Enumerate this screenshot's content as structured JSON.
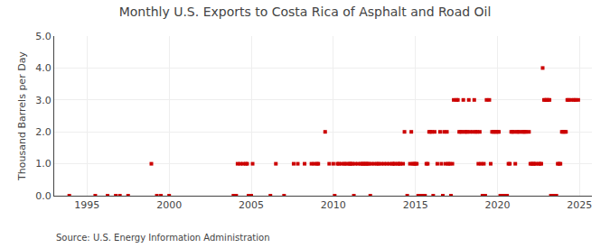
{
  "chart_data": {
    "type": "scatter",
    "title": "Monthly U.S. Exports to Costa Rica of Asphalt and Road Oil",
    "y_label": "Thousand Barrels per Day",
    "annotations": [
      "Source: U.S. Energy Information Administration"
    ],
    "color": "#cc0000",
    "marker": "square",
    "grid": true,
    "xlim": [
      1993.0,
      2025.75
    ],
    "xticks": [
      1995,
      2000,
      2005,
      2010,
      2015,
      2020,
      2025
    ],
    "ylim": [
      0,
      5.0
    ],
    "yticks": [
      {
        "value": 0.0,
        "label": "0.0"
      },
      {
        "value": 1.0,
        "label": "1.0"
      },
      {
        "value": 2.0,
        "label": "2.0"
      },
      {
        "value": 3.0,
        "label": "3.0"
      },
      {
        "value": 4.0,
        "label": "4.0"
      },
      {
        "value": 5.0,
        "label": "5.0"
      }
    ],
    "x": [
      1993.917,
      1995.5,
      1996.25,
      1996.75,
      1997.0,
      1997.5,
      1998.917,
      1999.25,
      1999.5,
      2000.0,
      2003.917,
      2004.083,
      2004.167,
      2004.333,
      2004.5,
      2004.667,
      2004.75,
      2004.833,
      2005.0,
      2005.083,
      2006.167,
      2006.5,
      2007.0,
      2007.583,
      2007.833,
      2008.25,
      2008.667,
      2008.833,
      2009.0,
      2009.083,
      2009.5,
      2009.75,
      2010.0,
      2010.083,
      2010.25,
      2010.333,
      2010.5,
      2010.667,
      2010.75,
      2010.917,
      2011.0,
      2011.083,
      2011.167,
      2011.25,
      2011.333,
      2011.5,
      2011.667,
      2011.75,
      2011.833,
      2011.917,
      2012.0,
      2012.083,
      2012.167,
      2012.25,
      2012.333,
      2012.5,
      2012.667,
      2012.75,
      2012.917,
      2013.083,
      2013.25,
      2013.417,
      2013.583,
      2013.667,
      2013.75,
      2013.917,
      2014.0,
      2014.083,
      2014.25,
      2014.333,
      2014.5,
      2014.667,
      2014.75,
      2014.833,
      2014.917,
      2015.0,
      2015.083,
      2015.167,
      2015.25,
      2015.333,
      2015.5,
      2015.583,
      2015.667,
      2015.75,
      2015.833,
      2015.917,
      2016.0,
      2016.083,
      2016.167,
      2016.333,
      2016.5,
      2016.583,
      2016.667,
      2016.75,
      2016.833,
      2016.917,
      2017.0,
      2017.083,
      2017.167,
      2017.25,
      2017.333,
      2017.5,
      2017.583,
      2017.667,
      2017.75,
      2017.833,
      2017.917,
      2018.0,
      2018.083,
      2018.167,
      2018.25,
      2018.333,
      2018.5,
      2018.583,
      2018.667,
      2018.75,
      2018.833,
      2018.917,
      2019.0,
      2019.083,
      2019.167,
      2019.25,
      2019.333,
      2019.5,
      2019.583,
      2019.667,
      2019.75,
      2019.833,
      2019.917,
      2020.0,
      2020.083,
      2020.167,
      2020.25,
      2020.333,
      2020.5,
      2020.583,
      2020.667,
      2020.75,
      2020.833,
      2020.917,
      2021.0,
      2021.083,
      2021.167,
      2021.25,
      2021.333,
      2021.5,
      2021.583,
      2021.667,
      2021.75,
      2021.917,
      2022.0,
      2022.083,
      2022.167,
      2022.25,
      2022.333,
      2022.5,
      2022.583,
      2022.667,
      2022.75,
      2022.833,
      2022.917,
      2023.0,
      2023.083,
      2023.167,
      2023.25,
      2023.333,
      2023.5,
      2023.583,
      2023.667,
      2023.75,
      2023.833,
      2023.917,
      2024.0,
      2024.083,
      2024.167,
      2024.25,
      2024.333,
      2024.5,
      2024.667,
      2024.75,
      2024.917
    ],
    "values": [
      0.0,
      0.0,
      0.0,
      0.0,
      0.0,
      0.0,
      1.0,
      0.0,
      0.0,
      0.0,
      0.0,
      0.0,
      1.0,
      1.0,
      1.0,
      1.0,
      1.0,
      0.0,
      0.0,
      1.0,
      0.0,
      1.0,
      0.0,
      1.0,
      1.0,
      1.0,
      1.0,
      1.0,
      1.0,
      1.0,
      2.0,
      1.0,
      1.0,
      0.0,
      1.0,
      1.0,
      1.0,
      1.0,
      1.0,
      1.0,
      1.0,
      1.0,
      1.0,
      0.0,
      1.0,
      1.0,
      1.0,
      1.0,
      1.0,
      1.0,
      1.0,
      1.0,
      1.0,
      0.0,
      1.0,
      1.0,
      1.0,
      1.0,
      1.0,
      1.0,
      1.0,
      1.0,
      1.0,
      1.0,
      1.0,
      1.0,
      1.0,
      1.0,
      1.0,
      2.0,
      0.0,
      1.0,
      2.0,
      1.0,
      1.0,
      1.0,
      1.0,
      0.0,
      0.0,
      0.0,
      0.0,
      0.0,
      1.0,
      1.0,
      2.0,
      2.0,
      2.0,
      0.0,
      2.0,
      1.0,
      2.0,
      1.0,
      0.0,
      2.0,
      1.0,
      2.0,
      1.0,
      1.0,
      0.0,
      1.0,
      3.0,
      3.0,
      3.0,
      2.0,
      2.0,
      2.0,
      3.0,
      2.0,
      2.0,
      2.0,
      3.0,
      2.0,
      2.0,
      3.0,
      2.0,
      2.0,
      1.0,
      2.0,
      1.0,
      0.0,
      1.0,
      0.0,
      3.0,
      3.0,
      1.0,
      2.0,
      2.0,
      2.0,
      2.0,
      2.0,
      2.0,
      0.0,
      0.0,
      0.0,
      0.0,
      0.0,
      1.0,
      1.0,
      2.0,
      2.0,
      2.0,
      1.0,
      2.0,
      2.0,
      2.0,
      2.0,
      2.0,
      2.0,
      2.0,
      2.0,
      1.0,
      1.0,
      1.0,
      1.0,
      1.0,
      1.0,
      1.0,
      1.0,
      4.0,
      3.0,
      3.0,
      3.0,
      3.0,
      3.0,
      0.0,
      0.0,
      0.0,
      0.0,
      1.0,
      1.0,
      1.0,
      2.0,
      2.0,
      2.0,
      2.0,
      3.0,
      3.0,
      3.0,
      3.0,
      3.0,
      3.0
    ]
  }
}
